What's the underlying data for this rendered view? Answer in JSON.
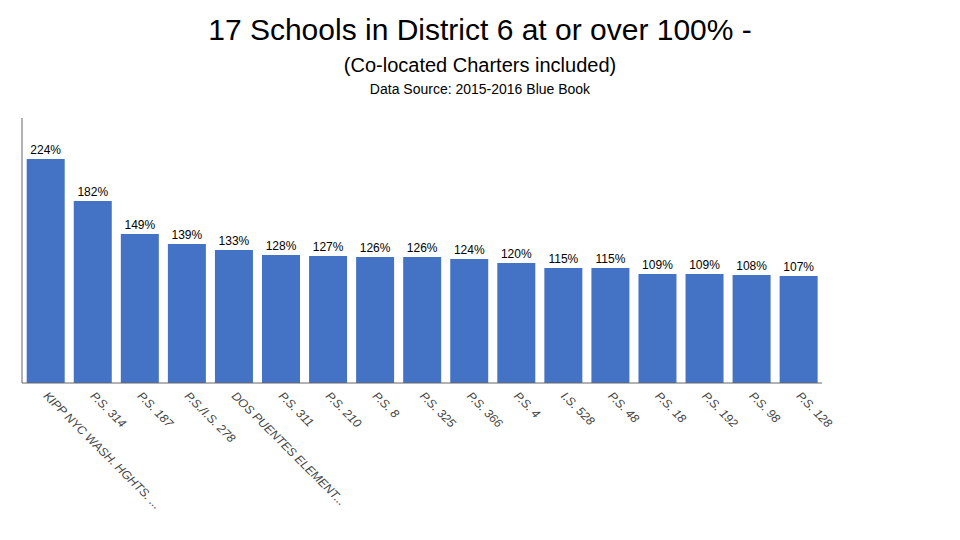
{
  "chart_data": {
    "type": "bar",
    "title": "17 Schools in District 6 at or over 100% -",
    "subtitle": "(Co-located Charters included)",
    "annotations": [
      "Data Source: 2015-2016 Blue Book"
    ],
    "categories": [
      "KIPP NYC WASH. HGHTS. ...",
      "P.S. 314",
      "P.S. 187",
      "P.S./I.S. 278",
      "DOS PUENTES ELEMENT...",
      "P.S. 311",
      "P.S. 210",
      "P.S. 8",
      "P.S. 325",
      "P.S. 366",
      "P.S. 4",
      "I.S. 528",
      "P.S. 48",
      "P.S. 18",
      "P.S. 192",
      "P.S. 98",
      "P.S. 128"
    ],
    "values": [
      224,
      182,
      149,
      139,
      133,
      128,
      127,
      126,
      126,
      124,
      120,
      115,
      115,
      109,
      109,
      108,
      107
    ],
    "value_labels": [
      "224%",
      "182%",
      "149%",
      "139%",
      "133%",
      "128%",
      "127%",
      "126%",
      "126%",
      "124%",
      "120%",
      "115%",
      "115%",
      "109%",
      "109%",
      "108%",
      "107%"
    ],
    "data_labels": true,
    "color": "#4472C4",
    "ylim": [
      0,
      265
    ],
    "grid": false,
    "tick_labels": "x"
  }
}
